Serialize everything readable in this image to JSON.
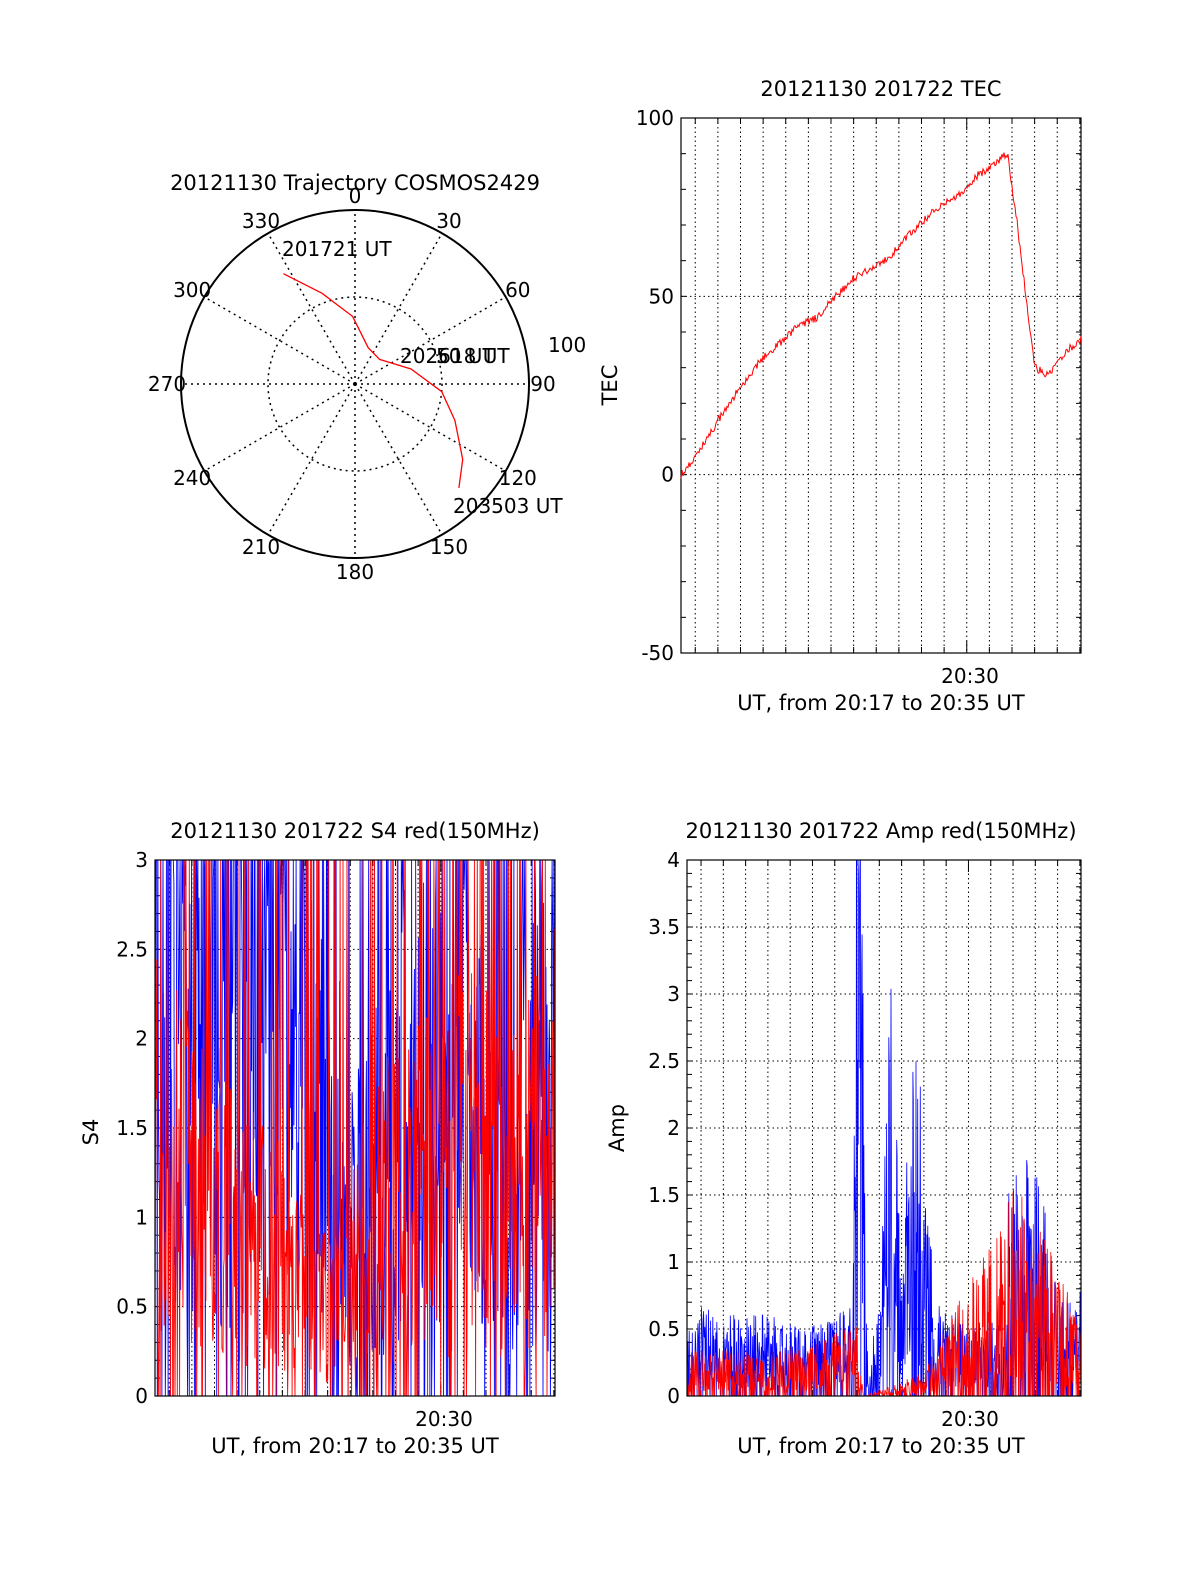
{
  "chart_data": [
    {
      "type": "polar",
      "title": "20121130 Trajectory COSMOS2429",
      "angle_labels": [
        "0",
        "30",
        "60",
        "90",
        "120",
        "150",
        "180",
        "210",
        "240",
        "270",
        "300",
        "330"
      ],
      "radius_label": "100",
      "trajectory": {
        "color": "#ff0000",
        "points_az_el": [
          [
            327,
            22
          ],
          [
            340,
            40
          ],
          [
            358,
            55
          ],
          [
            20,
            70
          ],
          [
            45,
            72
          ],
          [
            75,
            60
          ],
          [
            95,
            45
          ],
          [
            110,
            35
          ],
          [
            125,
            22
          ],
          [
            135,
            14
          ]
        ]
      },
      "annotations": [
        {
          "text": "201721 UT",
          "az": 327,
          "el": 22
        },
        {
          "text": "202618 UT",
          "az": 75,
          "el": 60
        },
        {
          "text": "203503 UT",
          "az": 135,
          "el": 14
        }
      ],
      "overlap_label": "50 UT"
    },
    {
      "type": "line",
      "title": "20121130 201722 TEC",
      "xlabel": "UT, from 20:17 to 20:35 UT",
      "ylabel": "TEC",
      "xtick": "20:30",
      "xlim": [
        17.37,
        35.05
      ],
      "ylim": [
        -50,
        100
      ],
      "yticks": [
        "100",
        "50",
        "0",
        "-50"
      ],
      "grid": true,
      "series": [
        {
          "color": "#ff0000",
          "x": [
            17.37,
            18.0,
            18.7,
            19.5,
            20.3,
            21.0,
            21.8,
            22.6,
            23.4,
            24.2,
            25.0,
            25.8,
            26.6,
            27.4,
            28.2,
            29.0,
            29.8,
            30.5,
            31.2,
            31.8,
            32.2,
            33.0,
            33.6,
            34.3,
            35.05
          ],
          "y": [
            0,
            5,
            12,
            20,
            27,
            33,
            37,
            42,
            44,
            50,
            55,
            58,
            61,
            67,
            72,
            76,
            79,
            84,
            87,
            90,
            72,
            30,
            28,
            34,
            38
          ]
        }
      ]
    },
    {
      "type": "line",
      "title": "20121130 201722 S4 red(150MHz)",
      "xlabel": "UT, from 20:17 to 20:35 UT",
      "ylabel": "S4",
      "xtick": "20:30",
      "xlim": [
        17.37,
        35.05
      ],
      "ylim": [
        0,
        3
      ],
      "yticks": [
        "3",
        "2.5",
        "2",
        "1.5",
        "1",
        "0.5",
        "0"
      ],
      "grid": true,
      "series": [
        {
          "name": "",
          "color": "#0000ff",
          "x": [
            17.37,
            19.0,
            21.0,
            23.0,
            25.0,
            26.0,
            27.0,
            29.0,
            31.0,
            32.0,
            32.5,
            33.0,
            33.5,
            34.0,
            35.05
          ],
          "y": [
            2.6,
            2.6,
            2.5,
            2.3,
            1.9,
            1.0,
            1.2,
            1.8,
            1.8,
            1.4,
            1.1,
            1.0,
            1.6,
            1.8,
            1.6
          ]
        },
        {
          "name": "",
          "color": "#ff0000",
          "x": [
            17.37,
            19.0,
            21.0,
            23.0,
            25.0,
            27.0,
            29.0,
            31.0,
            32.0,
            33.0,
            34.0,
            35.05
          ],
          "y": [
            1.6,
            1.2,
            1.0,
            0.8,
            0.5,
            1.0,
            1.3,
            1.5,
            1.3,
            1.1,
            1.4,
            1.5
          ]
        }
      ]
    },
    {
      "type": "line",
      "title": "20121130 201722 Amp red(150MHz)",
      "xlabel": "UT, from 20:17 to 20:35 UT",
      "ylabel": "Amp",
      "xtick": "20:30",
      "xlim": [
        17.37,
        35.05
      ],
      "ylim": [
        0,
        4
      ],
      "yticks": [
        "4",
        "3.5",
        "3",
        "2.5",
        "2",
        "1.5",
        "1",
        "0.5",
        "0"
      ],
      "grid": true,
      "series": [
        {
          "name": "",
          "color": "#0000ff",
          "x": [
            17.37,
            19.0,
            21.0,
            23.0,
            24.8,
            25.1,
            25.4,
            26.0,
            26.6,
            27.0,
            27.6,
            28.5,
            30.0,
            31.5,
            32.0,
            33.0,
            34.0,
            35.05
          ],
          "y": [
            0.4,
            0.35,
            0.35,
            0.3,
            0.4,
            3.9,
            0.4,
            0.35,
            2.1,
            0.5,
            1.8,
            0.4,
            0.3,
            0.35,
            1.2,
            1.1,
            0.4,
            0.45
          ]
        },
        {
          "name": "",
          "color": "#ff0000",
          "x": [
            17.37,
            21.0,
            25.0,
            25.3,
            28.0,
            32.0,
            33.0,
            35.05
          ],
          "y": [
            0.2,
            0.2,
            0.3,
            0.0,
            0.1,
            0.9,
            0.8,
            0.3
          ]
        }
      ]
    }
  ]
}
